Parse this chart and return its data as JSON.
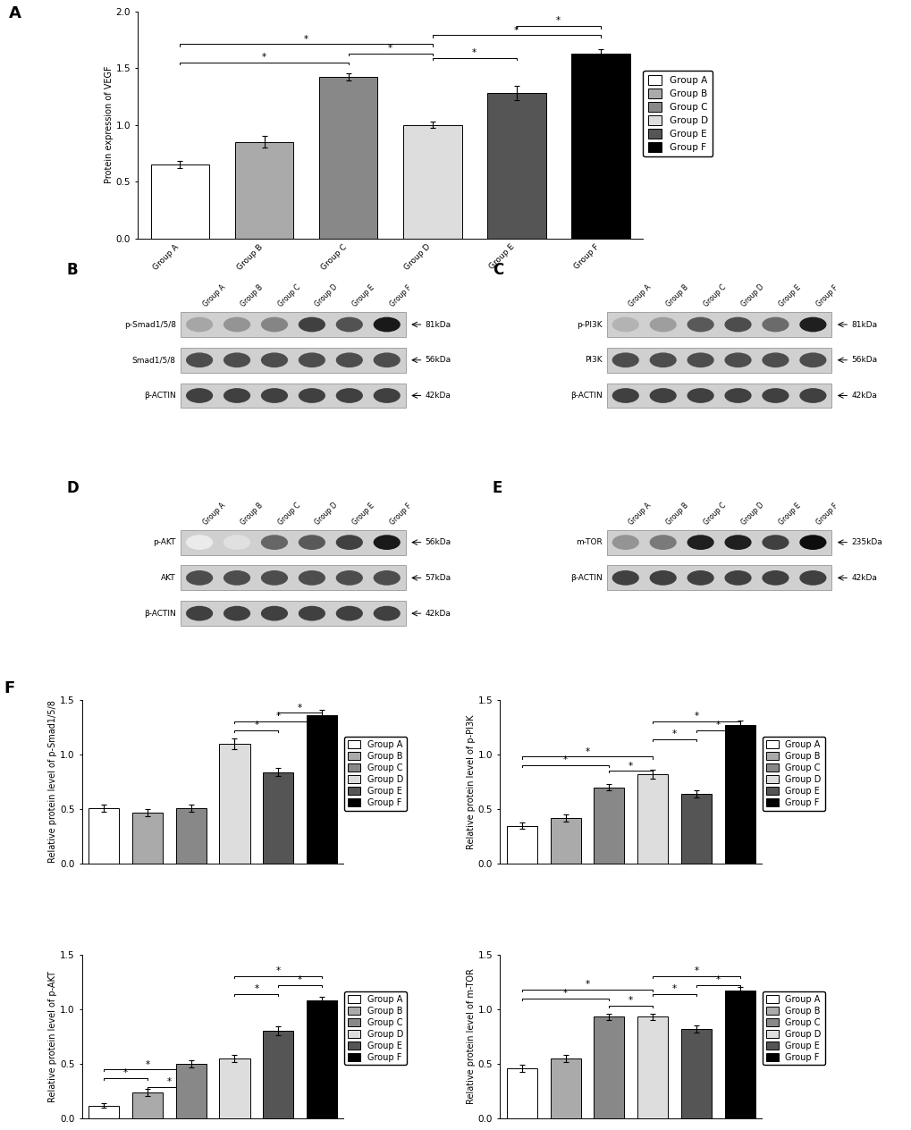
{
  "groups": [
    "Group A",
    "Group B",
    "Group C",
    "Group D",
    "Group E",
    "Group F"
  ],
  "bar_colors": [
    "#ffffff",
    "#aaaaaa",
    "#888888",
    "#dddddd",
    "#555555",
    "#000000"
  ],
  "bar_edge_colors": [
    "#000000",
    "#000000",
    "#000000",
    "#000000",
    "#000000",
    "#000000"
  ],
  "vegf_values": [
    0.65,
    0.85,
    1.42,
    1.0,
    1.28,
    1.63
  ],
  "vegf_errors": [
    0.03,
    0.05,
    0.03,
    0.03,
    0.06,
    0.04
  ],
  "vegf_ylabel": "Protein expression of VEGF",
  "vegf_ylim": [
    0.0,
    2.0
  ],
  "vegf_yticks": [
    0.0,
    0.5,
    1.0,
    1.5,
    2.0
  ],
  "vegf_sig_brackets": [
    [
      0,
      2,
      1.55,
      "*"
    ],
    [
      2,
      3,
      1.63,
      "*"
    ],
    [
      0,
      3,
      1.71,
      "*"
    ],
    [
      3,
      4,
      1.59,
      "*"
    ],
    [
      3,
      5,
      1.79,
      "*"
    ],
    [
      4,
      5,
      1.87,
      "*"
    ]
  ],
  "smad_values": [
    0.51,
    0.47,
    0.51,
    1.1,
    0.84,
    1.36
  ],
  "smad_errors": [
    0.03,
    0.03,
    0.03,
    0.05,
    0.04,
    0.05
  ],
  "smad_ylabel": "Relative protein level of p-Smad1/5/8",
  "smad_ylim": [
    0.0,
    1.5
  ],
  "smad_yticks": [
    0.0,
    0.5,
    1.0,
    1.5
  ],
  "smad_sig_brackets": [
    [
      3,
      4,
      1.22,
      "*"
    ],
    [
      3,
      5,
      1.3,
      "*"
    ],
    [
      4,
      5,
      1.38,
      "*"
    ]
  ],
  "pi3k_values": [
    0.35,
    0.42,
    0.7,
    0.82,
    0.64,
    1.27
  ],
  "pi3k_errors": [
    0.03,
    0.03,
    0.03,
    0.04,
    0.03,
    0.04
  ],
  "pi3k_ylabel": "Relative protein level of p-PI3K",
  "pi3k_ylim": [
    0.0,
    1.5
  ],
  "pi3k_yticks": [
    0.0,
    0.5,
    1.0,
    1.5
  ],
  "pi3k_sig_brackets": [
    [
      0,
      2,
      0.9,
      "*"
    ],
    [
      0,
      3,
      0.98,
      "*"
    ],
    [
      2,
      3,
      0.85,
      "*"
    ],
    [
      3,
      5,
      1.3,
      "*"
    ],
    [
      4,
      5,
      1.22,
      "*"
    ],
    [
      3,
      4,
      1.14,
      "*"
    ]
  ],
  "akt_values": [
    0.12,
    0.24,
    0.5,
    0.55,
    0.8,
    1.08
  ],
  "akt_errors": [
    0.02,
    0.03,
    0.03,
    0.03,
    0.04,
    0.03
  ],
  "akt_ylabel": "Relative protein level of p-AKT",
  "akt_ylim": [
    0.0,
    1.5
  ],
  "akt_yticks": [
    0.0,
    0.5,
    1.0,
    1.5
  ],
  "akt_sig_brackets": [
    [
      0,
      1,
      0.37,
      "*"
    ],
    [
      0,
      2,
      0.45,
      "*"
    ],
    [
      1,
      2,
      0.29,
      "*"
    ],
    [
      3,
      5,
      1.3,
      "*"
    ],
    [
      4,
      5,
      1.22,
      "*"
    ],
    [
      3,
      4,
      1.14,
      "*"
    ]
  ],
  "mtor_values": [
    0.46,
    0.55,
    0.93,
    0.93,
    0.82,
    1.17
  ],
  "mtor_errors": [
    0.03,
    0.03,
    0.03,
    0.03,
    0.03,
    0.03
  ],
  "mtor_ylabel": "Relative protein level of m-TOR",
  "mtor_ylim": [
    0.0,
    1.5
  ],
  "mtor_yticks": [
    0.0,
    0.5,
    1.0,
    1.5
  ],
  "mtor_sig_brackets": [
    [
      0,
      2,
      1.1,
      "*"
    ],
    [
      0,
      3,
      1.18,
      "*"
    ],
    [
      2,
      3,
      1.03,
      "*"
    ],
    [
      3,
      5,
      1.3,
      "*"
    ],
    [
      4,
      5,
      1.22,
      "*"
    ],
    [
      3,
      4,
      1.14,
      "*"
    ]
  ],
  "wb_B_labels": [
    "p-Smad1/5/8",
    "Smad1/5/8",
    "β-ACTIN"
  ],
  "wb_B_kda": [
    "81kDa",
    "56kDa",
    "42kDa"
  ],
  "wb_B_profiles": [
    [
      0.35,
      0.42,
      0.48,
      0.75,
      0.68,
      0.9
    ],
    [
      0.7,
      0.7,
      0.7,
      0.7,
      0.7,
      0.7
    ],
    [
      0.75,
      0.75,
      0.75,
      0.75,
      0.75,
      0.75
    ]
  ],
  "wb_C_labels": [
    "p-PI3K",
    "PI3K",
    "β-ACTIN"
  ],
  "wb_C_kda": [
    "81kDa",
    "56kDa",
    "42kDa"
  ],
  "wb_C_profiles": [
    [
      0.3,
      0.38,
      0.65,
      0.7,
      0.58,
      0.88
    ],
    [
      0.7,
      0.7,
      0.7,
      0.7,
      0.7,
      0.7
    ],
    [
      0.75,
      0.75,
      0.75,
      0.75,
      0.75,
      0.75
    ]
  ],
  "wb_D_labels": [
    "p-AKT",
    "AKT",
    "β-ACTIN"
  ],
  "wb_D_kda": [
    "56kDa",
    "57kDa",
    "42kDa"
  ],
  "wb_D_profiles": [
    [
      0.08,
      0.12,
      0.6,
      0.65,
      0.75,
      0.9
    ],
    [
      0.7,
      0.7,
      0.7,
      0.7,
      0.7,
      0.7
    ],
    [
      0.75,
      0.75,
      0.75,
      0.75,
      0.75,
      0.75
    ]
  ],
  "wb_E_labels": [
    "m-TOR",
    "β-ACTIN"
  ],
  "wb_E_kda": [
    "235kDa",
    "42kDa"
  ],
  "wb_E_profiles": [
    [
      0.42,
      0.52,
      0.88,
      0.88,
      0.75,
      0.95
    ],
    [
      0.75,
      0.75,
      0.75,
      0.75,
      0.75,
      0.75
    ]
  ]
}
